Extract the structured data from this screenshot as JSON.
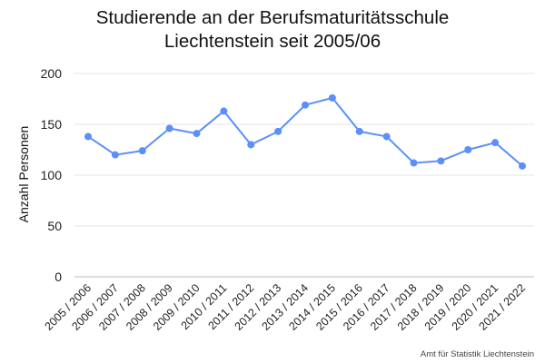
{
  "chart_data": {
    "type": "line",
    "title_lines": [
      "Studierende an der Berufsmaturitätsschule",
      "Liechtenstein seit 2005/06"
    ],
    "xlabel": "",
    "ylabel": "Anzahl Personen",
    "categories": [
      "2005 / 2006",
      "2006 / 2007",
      "2007 / 2008",
      "2008 / 2009",
      "2009 / 2010",
      "2010 / 2011",
      "2011 / 2012",
      "2012 / 2013",
      "2013 / 2014",
      "2014 / 2015",
      "2015 / 2016",
      "2016 / 2017",
      "2017 / 2018",
      "2018 / 2019",
      "2019 / 2020",
      "2020 / 2021",
      "2021 / 2022"
    ],
    "series": [
      {
        "values": [
          138,
          120,
          124,
          146,
          141,
          163,
          130,
          143,
          169,
          176,
          143,
          138,
          112,
          114,
          125,
          132,
          109
        ],
        "color": "#5b8ff9"
      }
    ],
    "ylim": [
      0,
      200
    ],
    "yticks": [
      0,
      50,
      100,
      150,
      200
    ],
    "grid": true,
    "legend": "none"
  },
  "footer": {
    "credit": "Amt für Statistik Liechtenstein"
  }
}
